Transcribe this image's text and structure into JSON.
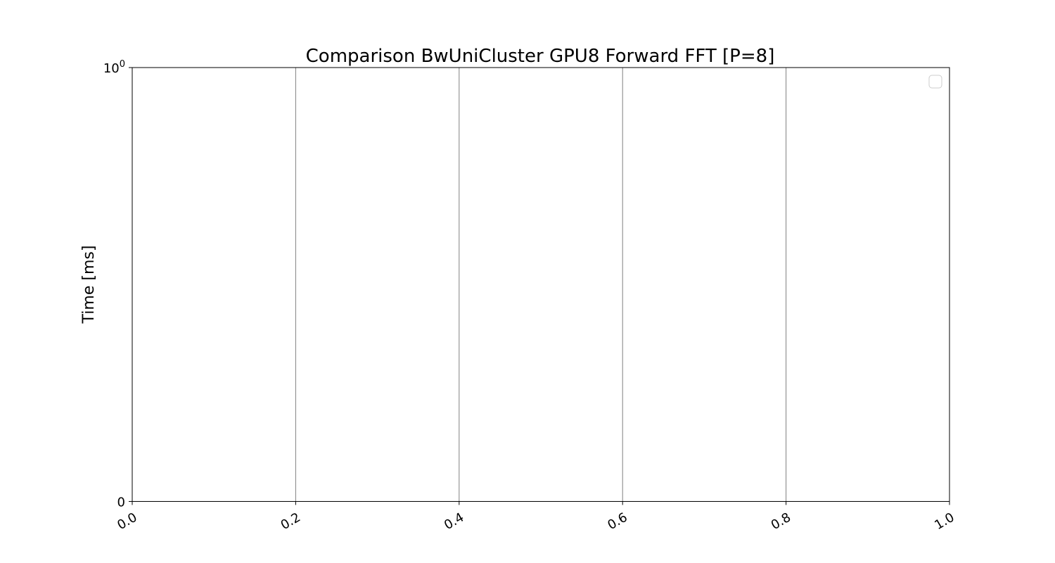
{
  "chart_data": {
    "type": "line",
    "title": "Comparison BwUniCluster GPU8 Forward FFT [P=8]",
    "xlabel": "",
    "ylabel": "Time [ms]",
    "xlim": [
      0.0,
      1.0
    ],
    "ylim": [
      0,
      1
    ],
    "yscale": "symlog",
    "x_ticks": [
      "0.0",
      "0.2",
      "0.4",
      "0.6",
      "0.8",
      "1.0"
    ],
    "x_tick_values": [
      0.0,
      0.2,
      0.4,
      0.6,
      0.8,
      1.0
    ],
    "x_tick_rotation": "rotated",
    "y_ticks": [
      {
        "value": 0,
        "base": "0",
        "exp": ""
      },
      {
        "value": 1,
        "base": "10",
        "exp": "0"
      }
    ],
    "grid": "vertical",
    "legend": "top-right (empty)",
    "series": [],
    "colors": {
      "grid": "#808080",
      "axes": "#000000",
      "legend_border": "#cccccc"
    }
  }
}
